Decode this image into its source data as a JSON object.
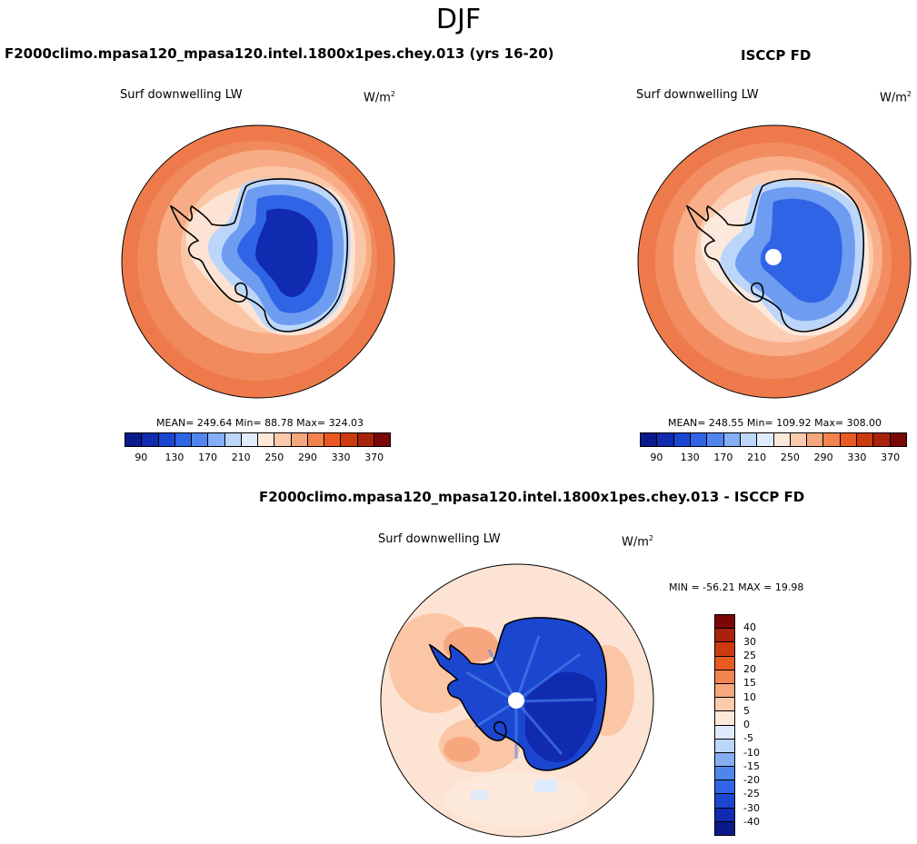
{
  "season": "DJF",
  "colors": {
    "abs_scale": [
      "#0a1a8c",
      "#102ab0",
      "#1a46d0",
      "#2f64e6",
      "#4f86ee",
      "#86aef5",
      "#bcd6fa",
      "#e0ecfd",
      "#fde9da",
      "#fbcaac",
      "#f7a77e",
      "#f2834f",
      "#e85a22",
      "#cc3b10",
      "#a8230a",
      "#7a0606"
    ],
    "diff_scale": [
      "#7a0606",
      "#a8230a",
      "#cc3b10",
      "#e85a22",
      "#f2834f",
      "#f7a77e",
      "#fbcaac",
      "#fde9da",
      "#dfeafc",
      "#bcd6fa",
      "#86aef5",
      "#4f86ee",
      "#2f64e6",
      "#1a46d0",
      "#102ab0",
      "#0a1a8c"
    ],
    "ocean_outer": "#ee7a4c",
    "ocean_mid": "#f8b08a",
    "ocean_inner": "#fbd6bf"
  },
  "panels": {
    "model": {
      "title": "F2000climo.mpasa120_mpasa120.intel.1800x1pes.chey.013 (yrs 16-20)",
      "variable": "Surf downwelling LW",
      "units_base": "W/m",
      "units_sup": "2",
      "stats": "MEAN= 249.64  Min=  88.78  Max= 324.03",
      "ticks": [
        "90",
        "130",
        "170",
        "210",
        "250",
        "290",
        "330",
        "370"
      ]
    },
    "obs": {
      "title": "ISCCP FD",
      "variable": "Surf downwelling LW",
      "units_base": "W/m",
      "units_sup": "2",
      "stats": "MEAN= 248.55  Min= 109.92  Max= 308.00",
      "ticks": [
        "90",
        "130",
        "170",
        "210",
        "250",
        "290",
        "330",
        "370"
      ]
    },
    "diff": {
      "title": "F2000climo.mpasa120_mpasa120.intel.1800x1pes.chey.013 - ISCCP FD",
      "variable": "Surf downwelling LW",
      "units_base": "W/m",
      "units_sup": "2",
      "stats": "MIN = -56.21 MAX =  19.98",
      "ticks": [
        "40",
        "30",
        "25",
        "20",
        "15",
        "10",
        "5",
        "0",
        "-5",
        "-10",
        "-15",
        "-20",
        "-25",
        "-30",
        "-40"
      ]
    }
  }
}
